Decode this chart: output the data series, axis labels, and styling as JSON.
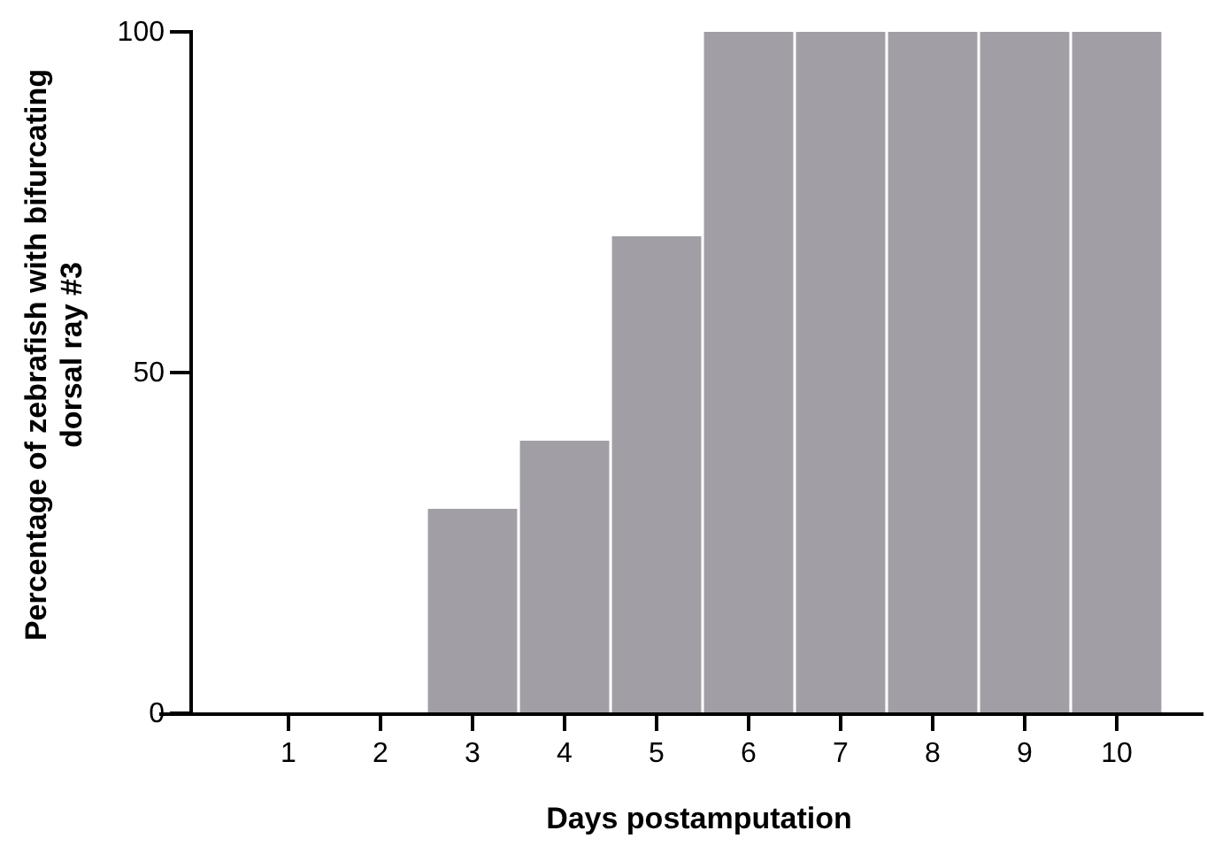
{
  "chart_data": {
    "type": "bar",
    "xlabel": "Days postamputation",
    "ylabel": "Percentage of zebrafish with bifurcating dorsal ray #3",
    "categories": [
      "1",
      "2",
      "3",
      "4",
      "5",
      "6",
      "7",
      "8",
      "9",
      "10"
    ],
    "values": [
      0,
      0,
      30,
      40,
      70,
      100,
      100,
      100,
      100,
      100
    ],
    "color": "#a19fa5",
    "ylim": [
      0,
      100
    ],
    "yticks": [
      0,
      50,
      100
    ],
    "grid": false
  }
}
